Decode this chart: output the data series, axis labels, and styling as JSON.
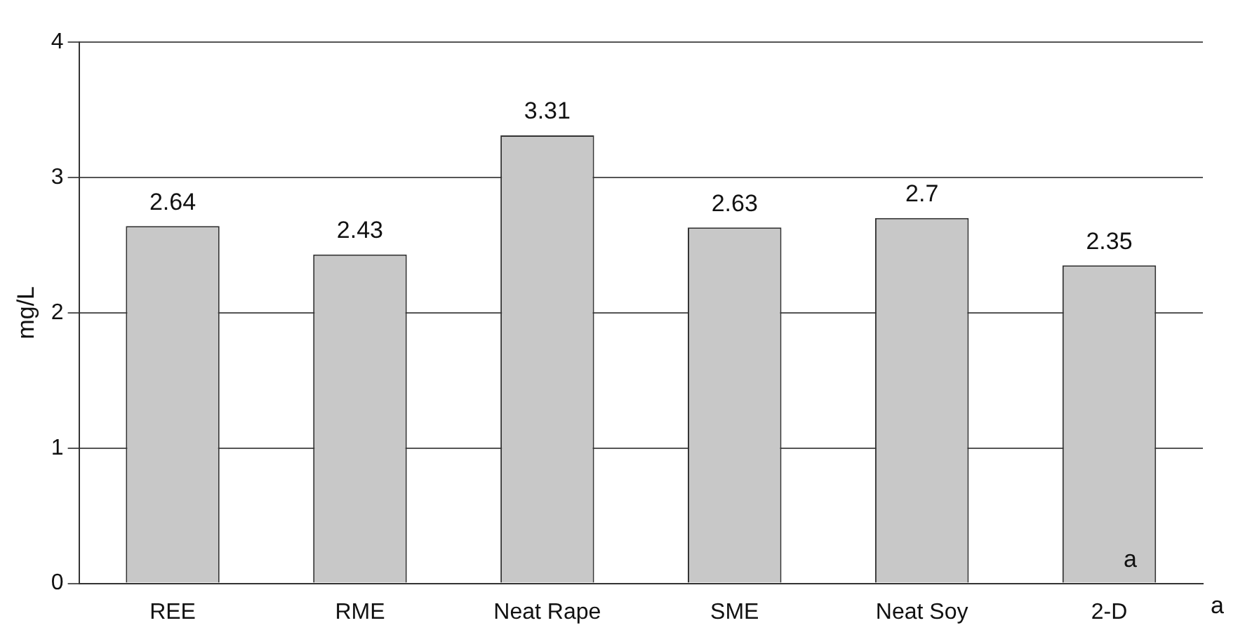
{
  "chart_data": {
    "type": "bar",
    "ylabel": "mg/L",
    "categories": [
      "REE",
      "RME",
      "Neat Rape",
      "SME",
      "Neat Soy",
      "2-D"
    ],
    "values": [
      2.64,
      2.43,
      3.31,
      2.63,
      2.7,
      2.35
    ],
    "color": "#c8c8c8",
    "ylim": [
      0,
      4
    ],
    "yticks": [
      0,
      1,
      2,
      3,
      4
    ],
    "grid": "y",
    "data_labels": true,
    "annotations": [
      "a",
      "a"
    ]
  }
}
